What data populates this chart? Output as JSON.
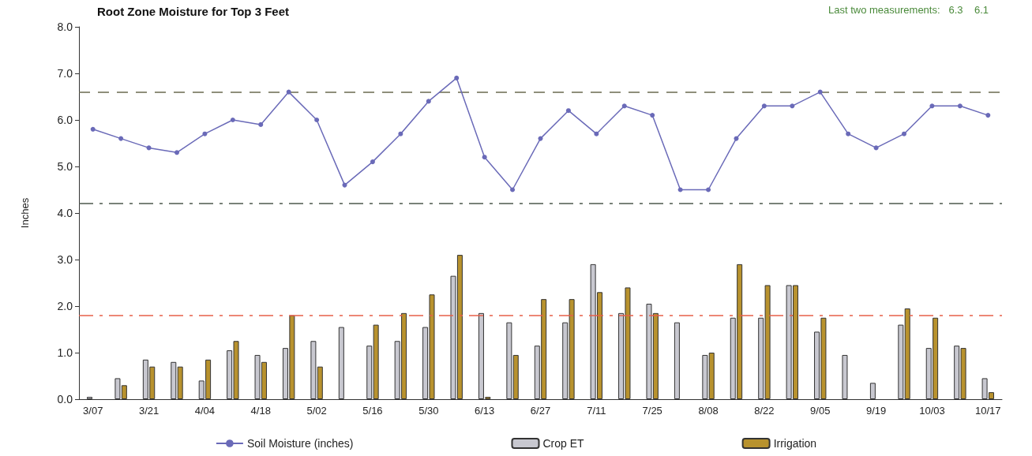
{
  "chart_data": {
    "type": "bar",
    "title": "Root Zone Moisture for Top 3 Feet",
    "ylabel": "Inches",
    "annotations": [
      "Last two measurements:   6.3    6.1"
    ],
    "categories": [
      "3/07",
      null,
      "3/21",
      null,
      "4/04",
      null,
      "4/18",
      null,
      "5/02",
      null,
      "5/16",
      null,
      "5/30",
      null,
      "6/13",
      null,
      "6/27",
      null,
      "7/11",
      null,
      "7/25",
      null,
      "8/08",
      null,
      "8/22",
      null,
      "9/05",
      null,
      "9/19",
      null,
      "10/03",
      null,
      "10/17"
    ],
    "series": [
      {
        "name": "Soil Moisture (inches)",
        "type": "line",
        "color": "#6a6ab8",
        "marker": "circle",
        "line_style": "solid",
        "values": [
          5.8,
          5.6,
          5.4,
          5.3,
          5.7,
          6.0,
          5.9,
          6.6,
          6.0,
          4.6,
          5.1,
          5.7,
          6.4,
          6.9,
          5.2,
          4.5,
          5.6,
          6.2,
          5.7,
          6.3,
          6.1,
          4.5,
          4.5,
          5.6,
          6.3,
          6.3,
          6.6,
          5.7,
          5.4,
          5.7,
          6.3,
          6.3,
          6.1
        ]
      },
      {
        "name": "Crop ET",
        "color": "#c8c8d0",
        "values": [
          0.05,
          0.45,
          0.85,
          0.8,
          0.4,
          1.05,
          0.95,
          1.1,
          1.25,
          1.55,
          1.15,
          1.25,
          1.55,
          2.65,
          1.85,
          1.65,
          1.15,
          1.65,
          2.9,
          1.85,
          2.05,
          1.65,
          0.95,
          1.75,
          1.75,
          2.45,
          1.45,
          0.95,
          0.35,
          1.6,
          1.1,
          1.15,
          0.45
        ]
      },
      {
        "name": "Irrigation",
        "color": "#b8922e",
        "values": [
          0,
          0.3,
          0.7,
          0.7,
          0.85,
          1.25,
          0.8,
          1.8,
          0.7,
          0,
          1.6,
          1.85,
          2.25,
          3.1,
          0.05,
          0.95,
          2.15,
          2.15,
          2.3,
          2.4,
          1.85,
          0,
          1.0,
          2.9,
          2.45,
          2.45,
          1.75,
          0,
          0,
          1.95,
          1.75,
          1.1,
          0.15
        ]
      }
    ],
    "ylim": [
      0,
      8
    ],
    "yticks": [
      {
        "value": 0,
        "label": "0.0"
      },
      {
        "value": 1,
        "label": "1.0"
      },
      {
        "value": 2,
        "label": "2.0"
      },
      {
        "value": 3,
        "label": "3.0"
      },
      {
        "value": 4,
        "label": "4.0"
      },
      {
        "value": 5,
        "label": "5.0"
      },
      {
        "value": 6,
        "label": "6.0"
      },
      {
        "value": 7,
        "label": "7.0"
      },
      {
        "value": 8,
        "label": "8.0"
      }
    ],
    "ref_lines": [
      {
        "axis": "y",
        "value": 6.6,
        "color": "#6b6b50",
        "line_style": "dashed"
      },
      {
        "axis": "y",
        "value": 4.2,
        "color": "#4d5a4d",
        "line_style": "dashdot"
      },
      {
        "axis": "y",
        "value": 1.8,
        "color": "#e8604a",
        "line_style": "dashdot"
      }
    ],
    "grid": false,
    "legend": "bottom"
  }
}
